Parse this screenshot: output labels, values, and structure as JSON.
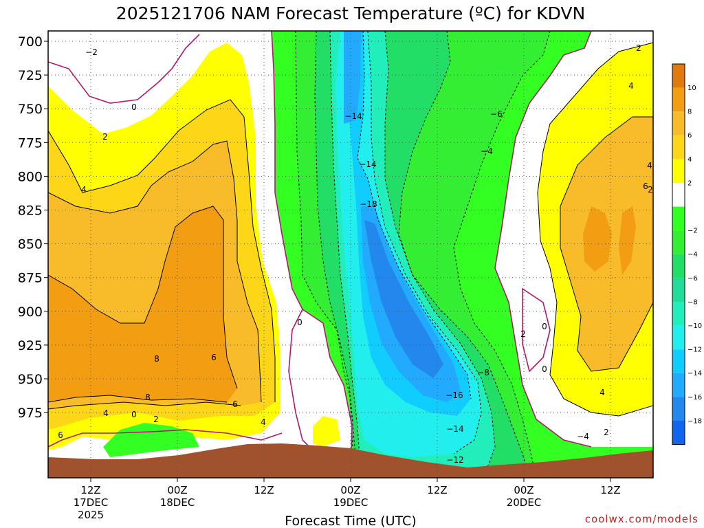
{
  "chart_data": {
    "type": "heatmap",
    "title": "2025121706 NAM Forecast Temperature (ºC) for KDVN",
    "xlabel": "Forecast Time (UTC)",
    "ylabel": "",
    "y_ticks": [
      "700",
      "725",
      "750",
      "775",
      "800",
      "825",
      "850",
      "875",
      "900",
      "925",
      "950",
      "975"
    ],
    "x_ticks": [
      {
        "line1": "12Z",
        "line2": "17DEC",
        "line3": "2025"
      },
      {
        "line1": "00Z",
        "line2": "18DEC",
        "line3": ""
      },
      {
        "line1": "12Z",
        "line2": "",
        "line3": ""
      },
      {
        "line1": "00Z",
        "line2": "19DEC",
        "line3": ""
      },
      {
        "line1": "12Z",
        "line2": "",
        "line3": ""
      },
      {
        "line1": "00Z",
        "line2": "20DEC",
        "line3": ""
      },
      {
        "line1": "12Z",
        "line2": "",
        "line3": ""
      }
    ],
    "colorbar": {
      "labels": [
        "10",
        "8",
        "6",
        "4",
        "2",
        "−2",
        "−4",
        "−6",
        "−8",
        "−10",
        "−12",
        "−14",
        "−16",
        "−18"
      ],
      "colors": [
        "#e07a0e",
        "#f39d12",
        "#f8bb2a",
        "#fcd617",
        "#ffff00",
        "#ffffff",
        "#33ff22",
        "#33ee33",
        "#22dd66",
        "#22dd99",
        "#22eebb",
        "#22eeee",
        "#11ccff",
        "#22aaff",
        "#2288ee",
        "#1166ee"
      ]
    },
    "terrain_color": "#a0522d",
    "contour_labels": [
      "−2",
      "0",
      "2",
      "4",
      "8",
      "6",
      "8",
      "6",
      "4",
      "0",
      "2",
      "4",
      "6",
      "0",
      "−14",
      "−14",
      "−18",
      "−6",
      "−4",
      "−8",
      "−16",
      "−14",
      "−12",
      "−4",
      "2",
      "0",
      "0",
      "2",
      "4",
      "4",
      "6",
      "2",
      "4",
      "2"
    ]
  },
  "credit": "coolwx.com/models"
}
